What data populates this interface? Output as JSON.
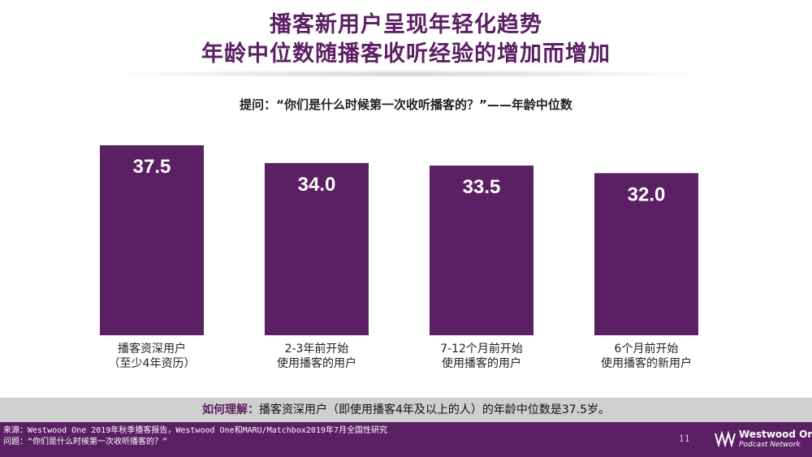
{
  "header": {
    "title_line1": "播客新用户呈现年轻化趋势",
    "title_line2": "年龄中位数随播客收听经验的增加而增加"
  },
  "question": "提问：“你们是什么时候第一次收听播客的？”——年龄中位数",
  "chart_data": {
    "type": "bar",
    "categories": [
      [
        "播客资深用户",
        "（至少4年资历）"
      ],
      [
        "2-3年前开始",
        "使用播客的用户"
      ],
      [
        "7-12个月前开始",
        "使用播客的用户"
      ],
      [
        "6个月前开始",
        "使用播客的新用户"
      ]
    ],
    "values": [
      37.5,
      34.0,
      33.5,
      32.0
    ],
    "value_labels": [
      "37.5",
      "34.0",
      "33.5",
      "32.0"
    ],
    "title": "",
    "xlabel": "",
    "ylabel": "",
    "ylim": [
      0,
      37.5
    ],
    "grid": false,
    "bar_color": "#5b1f63"
  },
  "insight": {
    "prefix": "如何理解：",
    "text": "播客资深用户（即使用播客4年及以上的人）的年龄中位数是37.5岁。"
  },
  "footer": {
    "source_line1": "来源：Westwood One 2019年秋季播客报告，Westwood One和MARU/Matchbox2019年7月全国性研究",
    "source_line2": "问题：“你们是什么时候第一次收听播客的？”",
    "page_number": "11",
    "logo_name": "Westwood One",
    "logo_sub": "Podcast Network"
  },
  "colors": {
    "accent": "#5b1f63",
    "band": "#cfcfcf"
  }
}
